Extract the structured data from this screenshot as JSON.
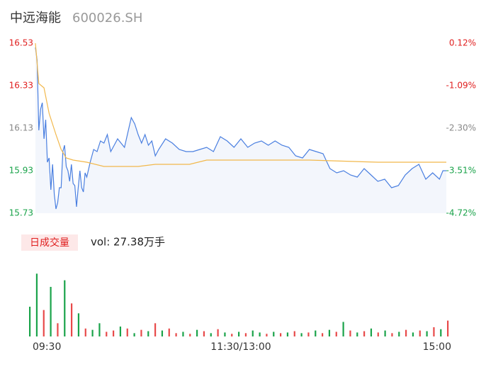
{
  "chart_data": [
    {
      "type": "line",
      "title": "中远海能",
      "subtitle": "600026.SH",
      "xlim": [
        0,
        240
      ],
      "xticks": [
        {
          "value": 0,
          "label": "09:30"
        },
        {
          "value": 120,
          "label": "11:30/13:00"
        },
        {
          "value": 240,
          "label": "15:00"
        }
      ],
      "ylim": [
        15.73,
        16.53
      ],
      "yticks": [
        16.53,
        16.33,
        16.13,
        15.93,
        15.73
      ],
      "y2lim": [
        -4.72,
        0.12
      ],
      "y2ticks": [
        {
          "value": 0.12,
          "label": "0.12%"
        },
        {
          "value": -1.09,
          "label": "-1.09%"
        },
        {
          "value": -2.3,
          "label": "-2.30%"
        },
        {
          "value": -3.51,
          "label": "-3.51%"
        },
        {
          "value": -4.72,
          "label": "-4.72%"
        }
      ],
      "ytick_colors": [
        "#e02020",
        "#e02020",
        "#888888",
        "#1aa34a",
        "#1aa34a"
      ],
      "area_color": "#f3f6fc",
      "series": [
        {
          "color": "#4a7fe0",
          "x": [
            0,
            1,
            2,
            3,
            4,
            5,
            6,
            7,
            8,
            9,
            10,
            11,
            12,
            13,
            14,
            15,
            16,
            17,
            18,
            19,
            20,
            21,
            22,
            23,
            24,
            25,
            26,
            27,
            28,
            29,
            30,
            32,
            34,
            36,
            38,
            40,
            42,
            44,
            46,
            48,
            50,
            52,
            54,
            56,
            58,
            60,
            62,
            64,
            66,
            68,
            70,
            72,
            76,
            80,
            84,
            88,
            92,
            96,
            100,
            104,
            108,
            112,
            116,
            120,
            124,
            128,
            132,
            136,
            140,
            144,
            148,
            152,
            156,
            160,
            164,
            168,
            172,
            176,
            180,
            184,
            188,
            192,
            196,
            200,
            204,
            208,
            212,
            216,
            220,
            224,
            228,
            232,
            236,
            238,
            240
          ],
          "values": [
            16.51,
            16.45,
            16.12,
            16.22,
            16.25,
            16.08,
            16.17,
            15.97,
            15.99,
            15.84,
            15.96,
            15.82,
            15.75,
            15.78,
            15.85,
            15.85,
            16.02,
            16.05,
            15.95,
            15.93,
            15.88,
            15.96,
            15.87,
            15.86,
            15.76,
            15.85,
            15.93,
            15.85,
            15.83,
            15.92,
            15.9,
            15.97,
            16.03,
            16.02,
            16.07,
            16.06,
            16.1,
            16.02,
            16.05,
            16.08,
            16.06,
            16.04,
            16.11,
            16.18,
            16.15,
            16.1,
            16.06,
            16.1,
            16.05,
            16.07,
            16.0,
            16.03,
            16.08,
            16.06,
            16.03,
            16.02,
            16.02,
            16.03,
            16.04,
            16.02,
            16.09,
            16.07,
            16.04,
            16.08,
            16.04,
            16.06,
            16.07,
            16.05,
            16.07,
            16.05,
            16.04,
            16.0,
            15.99,
            16.03,
            16.02,
            16.01,
            15.94,
            15.92,
            15.93,
            15.91,
            15.9,
            15.94,
            15.91,
            15.88,
            15.89,
            15.85,
            15.86,
            15.91,
            15.94,
            15.96,
            15.89,
            15.92,
            15.89,
            15.93,
            15.93
          ]
        },
        {
          "color": "#f2b84b",
          "x": [
            0,
            2,
            5,
            8,
            12,
            15,
            18,
            22,
            30,
            40,
            60,
            70,
            90,
            100,
            120,
            160,
            200,
            240
          ],
          "values": [
            16.53,
            16.34,
            16.32,
            16.2,
            16.1,
            16.03,
            15.99,
            15.98,
            15.97,
            15.95,
            15.95,
            15.96,
            15.96,
            15.98,
            15.98,
            15.98,
            15.97,
            15.97
          ]
        }
      ]
    },
    {
      "type": "bar",
      "title": "日成交量",
      "annotation": "vol: 27.38万手",
      "xlim": [
        0,
        240
      ],
      "ylim": [
        0,
        12000
      ],
      "x": [
        0,
        4,
        8,
        12,
        16,
        20,
        24,
        28,
        32,
        36,
        40,
        44,
        48,
        52,
        56,
        60,
        64,
        68,
        72,
        76,
        80,
        84,
        88,
        92,
        96,
        100,
        104,
        108,
        112,
        116,
        120,
        124,
        128,
        132,
        136,
        140,
        144,
        148,
        152,
        156,
        160,
        164,
        168,
        172,
        176,
        180,
        184,
        188,
        192,
        196,
        200,
        204,
        208,
        212,
        216,
        220,
        224,
        228,
        232,
        236,
        240
      ],
      "values": [
        4500,
        9500,
        4000,
        7500,
        2000,
        8500,
        5000,
        3500,
        1200,
        1000,
        2000,
        700,
        900,
        1500,
        1200,
        500,
        1000,
        800,
        2000,
        900,
        1200,
        500,
        700,
        400,
        1000,
        800,
        500,
        1100,
        600,
        400,
        700,
        500,
        900,
        600,
        400,
        700,
        500,
        600,
        800,
        500,
        600,
        900,
        500,
        1000,
        700,
        2200,
        900,
        600,
        800,
        1200,
        600,
        900,
        500,
        700,
        1000,
        600,
        900,
        800,
        1400,
        1100,
        2400
      ],
      "colors": [
        "#1aa34a",
        "#1aa34a",
        "#e84a4a",
        "#1aa34a",
        "#e84a4a",
        "#1aa34a",
        "#e84a4a",
        "#1aa34a",
        "#e84a4a",
        "#1aa34a",
        "#1aa34a",
        "#e84a4a",
        "#e84a4a",
        "#1aa34a",
        "#e84a4a",
        "#1aa34a",
        "#e84a4a",
        "#1aa34a",
        "#e84a4a",
        "#1aa34a",
        "#e84a4a",
        "#e84a4a",
        "#1aa34a",
        "#e84a4a",
        "#1aa34a",
        "#e84a4a",
        "#1aa34a",
        "#e84a4a",
        "#1aa34a",
        "#e84a4a",
        "#1aa34a",
        "#e84a4a",
        "#1aa34a",
        "#1aa34a",
        "#e84a4a",
        "#1aa34a",
        "#e84a4a",
        "#1aa34a",
        "#e84a4a",
        "#1aa34a",
        "#e84a4a",
        "#1aa34a",
        "#e84a4a",
        "#1aa34a",
        "#e84a4a",
        "#1aa34a",
        "#e84a4a",
        "#1aa34a",
        "#e84a4a",
        "#1aa34a",
        "#e84a4a",
        "#1aa34a",
        "#e84a4a",
        "#1aa34a",
        "#e84a4a",
        "#1aa34a",
        "#e84a4a",
        "#1aa34a",
        "#e84a4a",
        "#1aa34a",
        "#e84a4a"
      ]
    }
  ]
}
